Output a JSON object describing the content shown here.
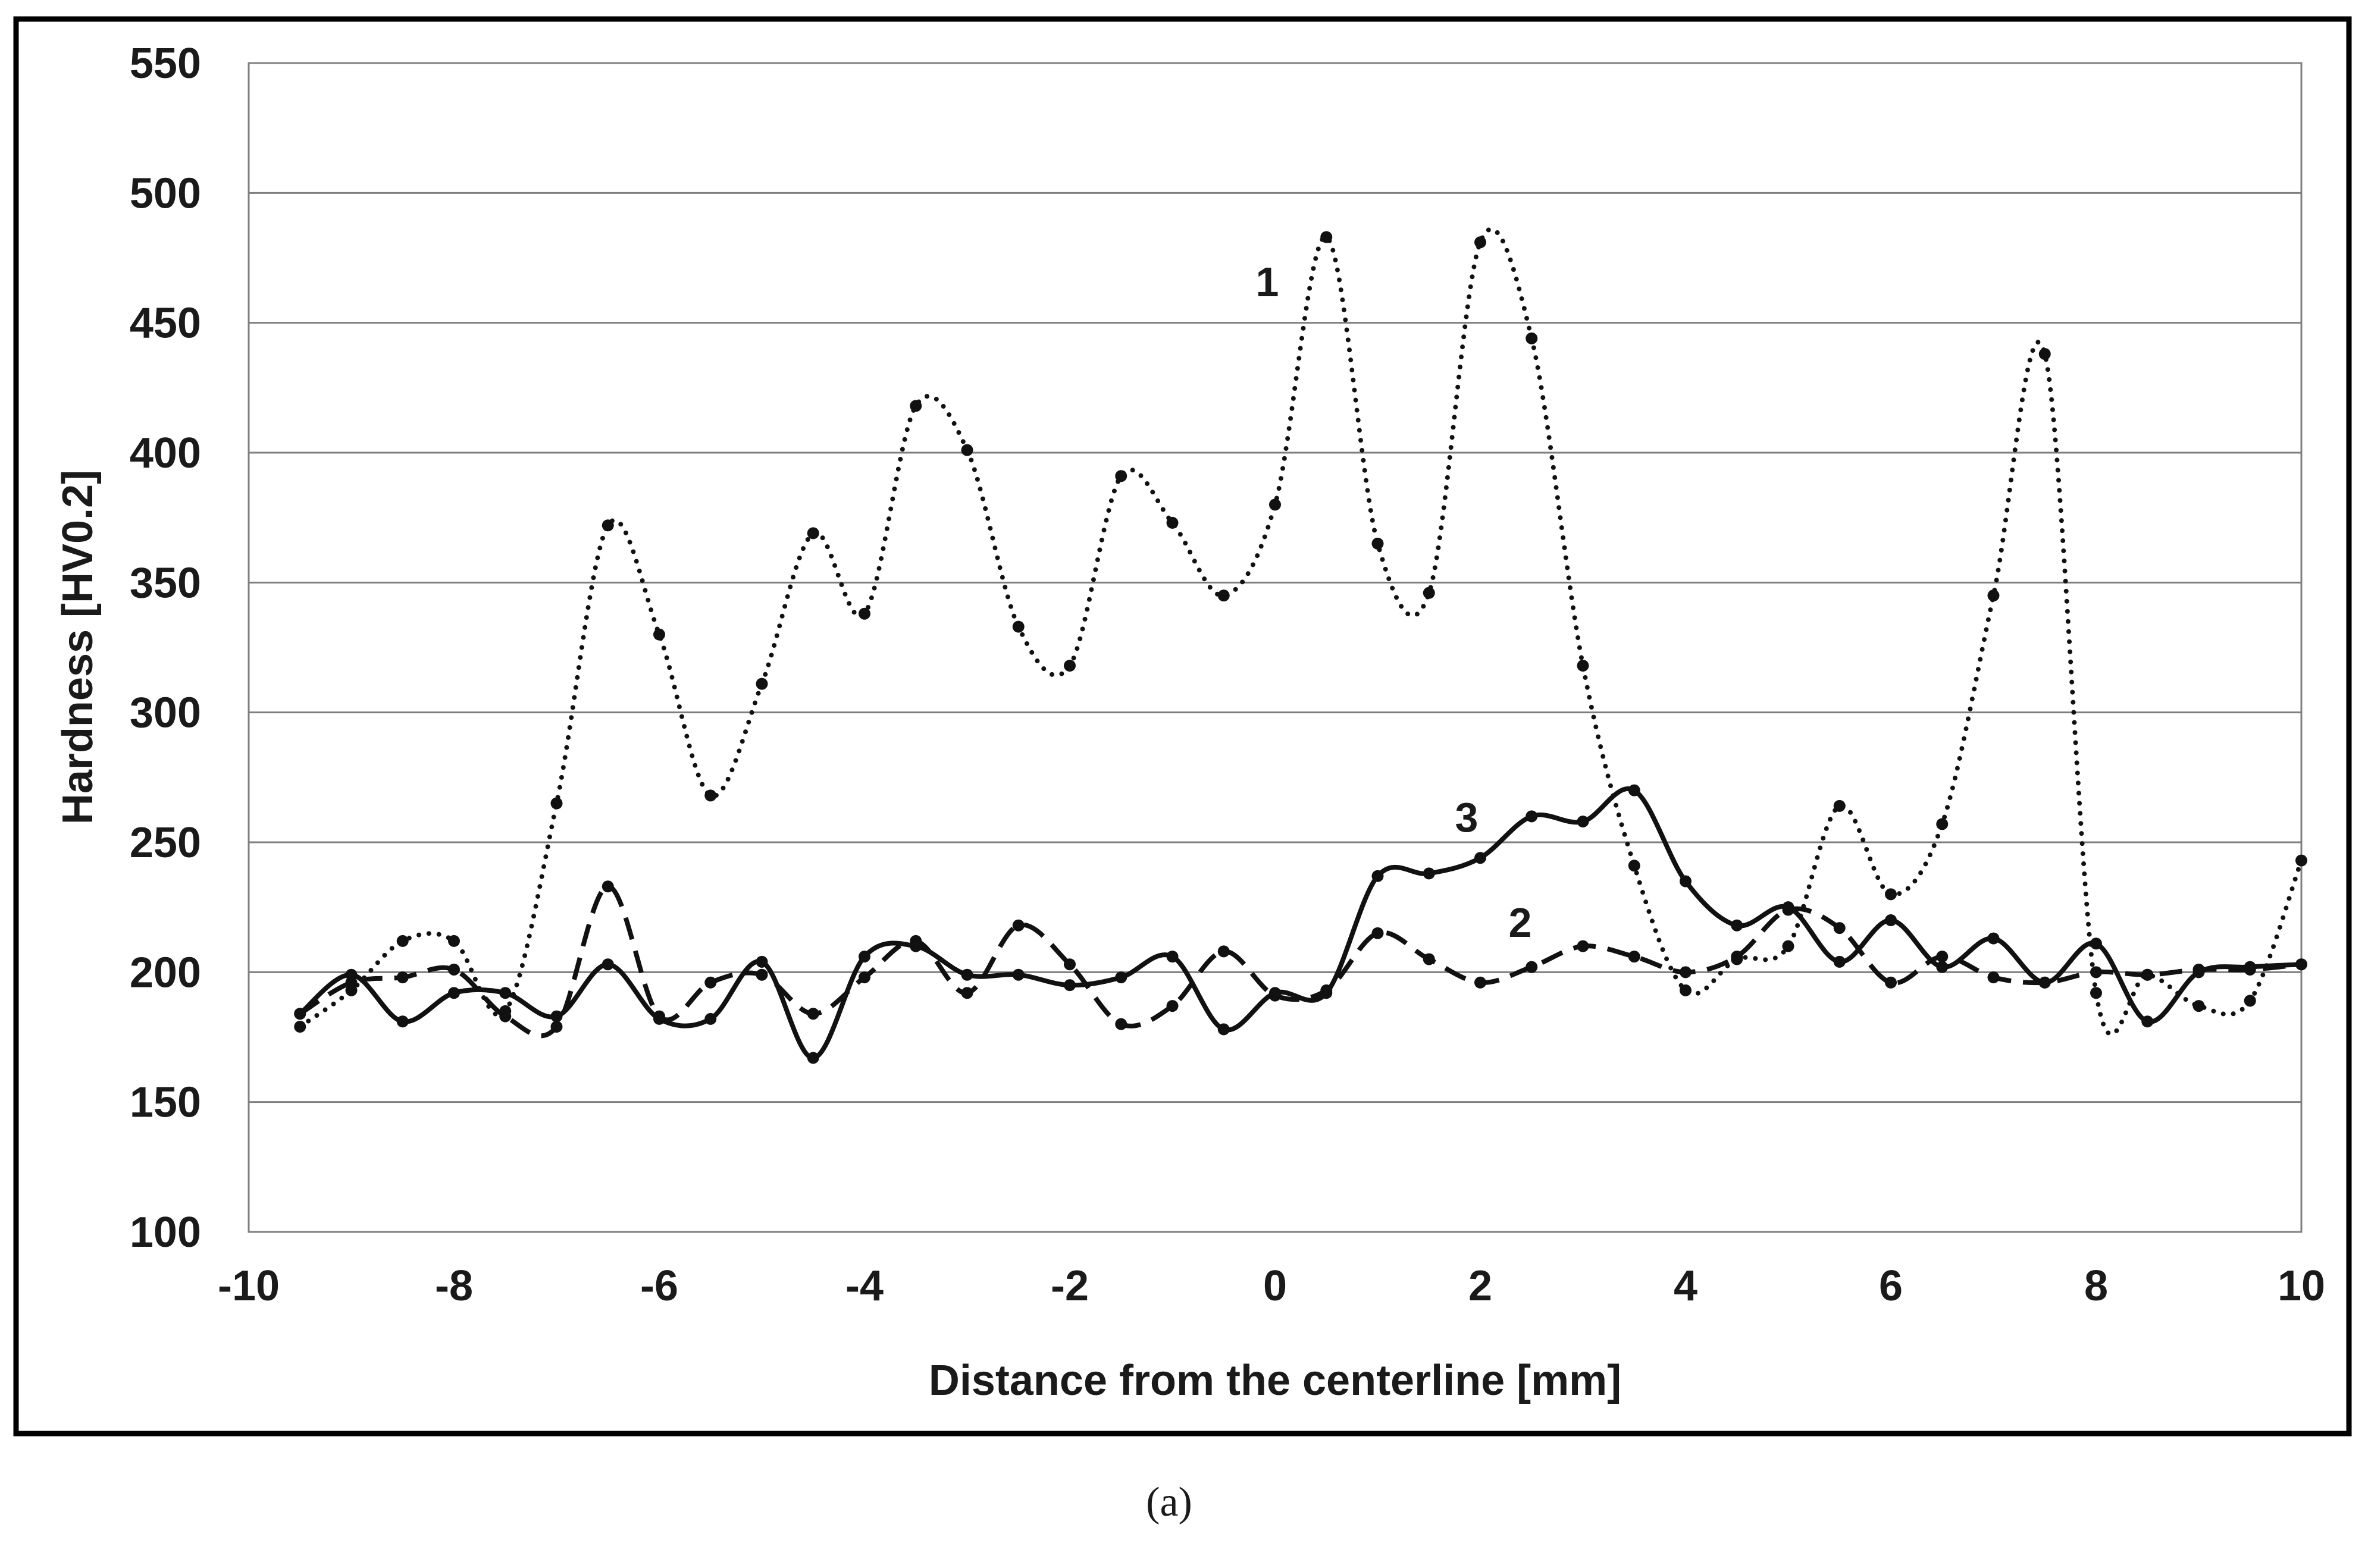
{
  "chart_data": {
    "type": "line",
    "xlabel": "Distance from the centerline [mm]",
    "ylabel": "Hardness [HV0.2]",
    "xlim": [
      -10,
      10
    ],
    "ylim": [
      100,
      550
    ],
    "x_ticks": [
      "-10",
      "-8",
      "-6",
      "-4",
      "-2",
      "0",
      "2",
      "4",
      "6",
      "8",
      "10"
    ],
    "y_ticks": [
      "100",
      "150",
      "200",
      "250",
      "300",
      "350",
      "400",
      "450",
      "500",
      "550"
    ],
    "grid": "horizontal",
    "caption": "(a)",
    "series": [
      {
        "label": "1",
        "style": "dotted",
        "markers": true,
        "x": [
          -9.5,
          -9,
          -8.5,
          -8,
          -7.5,
          -7,
          -6.5,
          -6,
          -5.5,
          -5,
          -4.5,
          -4,
          -3.5,
          -3,
          -2.5,
          -2,
          -1.5,
          -1,
          -0.5,
          0,
          0.5,
          1,
          1.5,
          2,
          2.5,
          3,
          3.5,
          4,
          4.5,
          5,
          5.5,
          6,
          6.5,
          7,
          7.5,
          8,
          8.5,
          9,
          9.5,
          10
        ],
        "y": [
          179,
          193,
          212,
          212,
          185,
          265,
          372,
          330,
          268,
          311,
          369,
          338,
          418,
          401,
          333,
          318,
          391,
          373,
          345,
          380,
          483,
          365,
          346,
          481,
          444,
          318,
          241,
          193,
          205,
          210,
          264,
          230,
          257,
          345,
          438,
          192,
          199,
          187,
          189,
          243
        ]
      },
      {
        "label": "2",
        "style": "dashed",
        "markers": true,
        "x": [
          -9.5,
          -9,
          -8.5,
          -8,
          -7.5,
          -7,
          -6.5,
          -6,
          -5.5,
          -5,
          -4.5,
          -4,
          -3.5,
          -3,
          -2.5,
          -2,
          -1.5,
          -1,
          -0.5,
          0,
          0.5,
          1,
          1.5,
          2,
          2.5,
          3,
          3.5,
          4,
          4.5,
          5,
          5.5,
          6,
          6.5,
          7,
          7.5,
          8,
          8.5,
          9,
          9.5,
          10
        ],
        "y": [
          184,
          196,
          198,
          201,
          183,
          179,
          233,
          183,
          196,
          199,
          184,
          198,
          212,
          192,
          218,
          203,
          180,
          187,
          208,
          191,
          193,
          215,
          205,
          196,
          202,
          210,
          206,
          200,
          206,
          224,
          217,
          196,
          206,
          198,
          196,
          200,
          199,
          201,
          201,
          203
        ]
      },
      {
        "label": "3",
        "style": "solid",
        "markers": true,
        "x": [
          -9.5,
          -9,
          -8.5,
          -8,
          -7.5,
          -7,
          -6.5,
          -6,
          -5.5,
          -5,
          -4.5,
          -4,
          -3.5,
          -3,
          -2.5,
          -2,
          -1.5,
          -1,
          -0.5,
          0,
          0.5,
          1,
          1.5,
          2,
          2.5,
          3,
          3.5,
          4,
          4.5,
          5,
          5.5,
          6,
          6.5,
          7,
          7.5,
          8,
          8.5,
          9,
          9.5,
          10
        ],
        "y": [
          184,
          199,
          181,
          192,
          192,
          183,
          203,
          182,
          182,
          204,
          167,
          206,
          210,
          199,
          199,
          195,
          198,
          206,
          178,
          192,
          192,
          237,
          238,
          244,
          260,
          258,
          270,
          235,
          218,
          225,
          204,
          220,
          202,
          213,
          196,
          211,
          181,
          200,
          202,
          203
        ]
      }
    ]
  }
}
